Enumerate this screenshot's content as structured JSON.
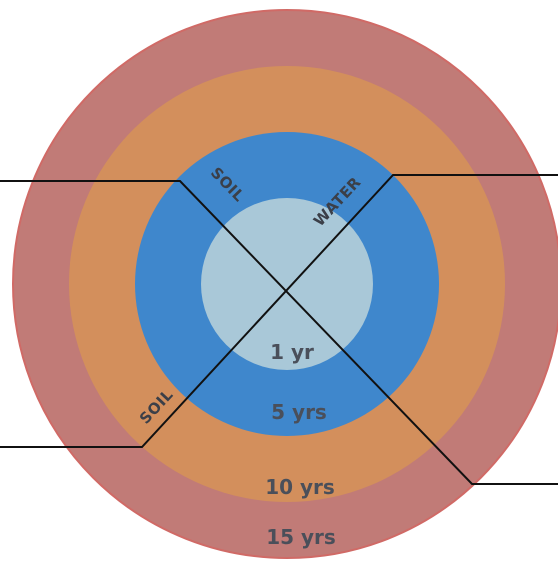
{
  "colors": {
    "ring_15": "#c17b77",
    "ring_15_edge": "#d06a66",
    "ring_10": "#d38f5c",
    "ring_5": "#3f87cc",
    "core_1": "#a9c8d8",
    "text": "#4a4f5a",
    "line": "#111111"
  },
  "rings": [
    {
      "label": "1 yr"
    },
    {
      "label": "5 yrs"
    },
    {
      "label": "10 yrs"
    },
    {
      "label": "15 yrs"
    }
  ],
  "arms": {
    "top_left": "SOIL",
    "top_right": "WATER",
    "bottom_left": "SOIL"
  }
}
